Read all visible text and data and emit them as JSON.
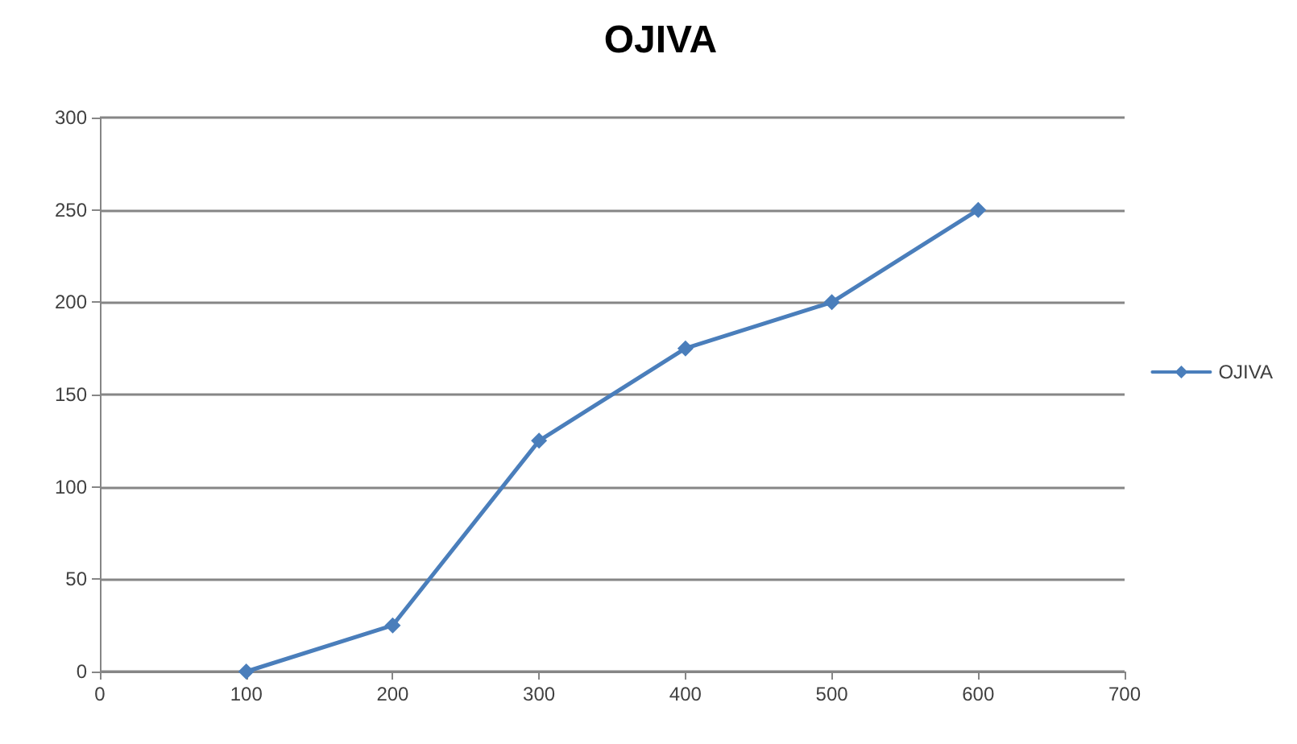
{
  "chart_data": {
    "type": "line",
    "title": "OJIVA",
    "x": [
      100,
      200,
      300,
      400,
      500,
      600
    ],
    "series": [
      {
        "name": "OJIVA",
        "color": "#4a7ebb",
        "values": [
          0,
          25,
          125,
          175,
          200,
          250
        ]
      }
    ],
    "xlim": [
      0,
      700
    ],
    "xticks": [
      0,
      100,
      200,
      300,
      400,
      500,
      600,
      700
    ],
    "ylim": [
      0,
      300
    ],
    "yticks": [
      0,
      50,
      100,
      150,
      200,
      250,
      300
    ],
    "grid": "y",
    "legend": "right",
    "marker": "diamond",
    "line_style": "solid"
  }
}
